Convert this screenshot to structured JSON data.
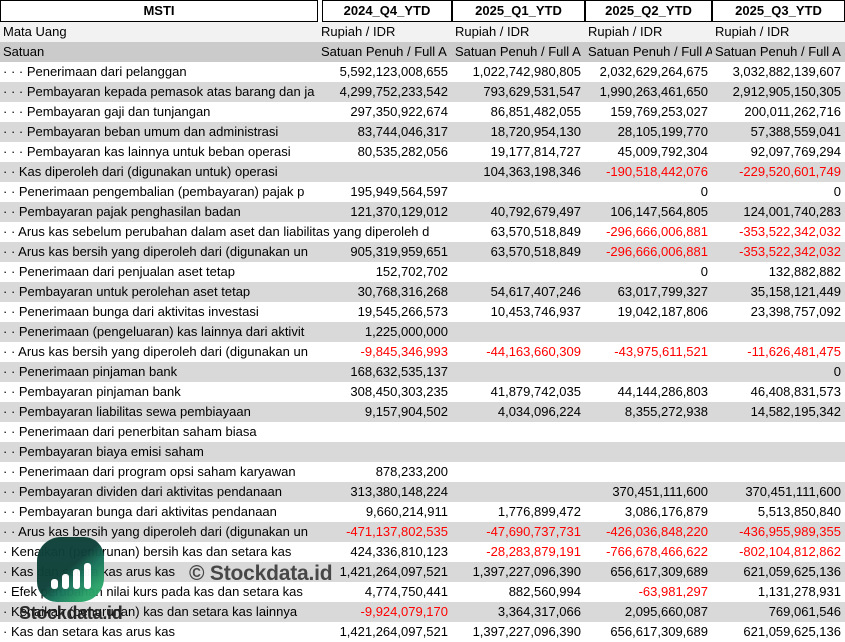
{
  "table": {
    "title": "MSTI",
    "periods": [
      "2024_Q4_YTD",
      "2025_Q1_YTD",
      "2025_Q2_YTD",
      "2025_Q3_YTD"
    ],
    "currency_row": {
      "label": "Mata Uang",
      "values": [
        "Rupiah / IDR",
        "Rupiah / IDR",
        "Rupiah / IDR",
        "Rupiah / IDR"
      ]
    },
    "unit_row": {
      "label": "Satuan",
      "values": [
        "Satuan Penuh / Full A",
        "Satuan Penuh / Full A",
        "Satuan Penuh / Full A",
        "Satuan Penuh / Full A"
      ]
    },
    "rows": [
      {
        "label": "· · · Penerimaan dari pelanggan",
        "values": [
          "5,592,123,008,655",
          "1,022,742,980,805",
          "2,032,629,264,675",
          "3,032,882,139,607"
        ]
      },
      {
        "label": "· · · Pembayaran kepada pemasok atas barang dan ja",
        "values": [
          "4,299,752,233,542",
          "793,629,531,547",
          "1,990,263,461,650",
          "2,912,905,150,305"
        ]
      },
      {
        "label": "· · · Pembayaran gaji dan tunjangan",
        "values": [
          "297,350,922,674",
          "86,851,482,055",
          "159,769,253,027",
          "200,011,262,716"
        ]
      },
      {
        "label": "· · · Pembayaran beban umum dan administrasi",
        "values": [
          "83,744,046,317",
          "18,720,954,130",
          "28,105,199,770",
          "57,388,559,041"
        ]
      },
      {
        "label": "· · · Pembayaran kas lainnya untuk beban operasi",
        "values": [
          "80,535,282,056",
          "19,177,814,727",
          "45,009,792,304",
          "92,097,769,294"
        ]
      },
      {
        "label": "· · Kas diperoleh dari (digunakan untuk) operasi",
        "values": [
          "",
          "104,363,198,346",
          "-190,518,442,076",
          "-229,520,601,749"
        ]
      },
      {
        "label": "· · Penerimaan pengembalian (pembayaran) pajak p",
        "values": [
          "195,949,564,597",
          "",
          "0",
          "0"
        ]
      },
      {
        "label": "· · Pembayaran pajak penghasilan badan",
        "values": [
          "121,370,129,012",
          "40,792,679,497",
          "106,147,564,805",
          "124,001,740,283"
        ]
      },
      {
        "label": "· · Arus kas sebelum perubahan dalam aset dan liabilitas yang diperoleh d",
        "values": [
          "",
          "63,570,518,849",
          "-296,666,006,881",
          "-353,522,342,032"
        ],
        "label_span": true
      },
      {
        "label": "· · Arus kas bersih yang diperoleh dari (digunakan un",
        "values": [
          "905,319,959,651",
          "63,570,518,849",
          "-296,666,006,881",
          "-353,522,342,032"
        ]
      },
      {
        "label": "· · Penerimaan dari penjualan aset tetap",
        "values": [
          "152,702,702",
          "",
          "0",
          "132,882,882"
        ]
      },
      {
        "label": "· · Pembayaran untuk perolehan aset tetap",
        "values": [
          "30,768,316,268",
          "54,617,407,246",
          "63,017,799,327",
          "35,158,121,449"
        ]
      },
      {
        "label": "· · Penerimaan bunga dari aktivitas investasi",
        "values": [
          "19,545,266,573",
          "10,453,746,937",
          "19,042,187,806",
          "23,398,757,092"
        ]
      },
      {
        "label": "· · Penerimaan (pengeluaran) kas lainnya dari aktivit",
        "values": [
          "1,225,000,000",
          "",
          "",
          ""
        ]
      },
      {
        "label": "· · Arus kas bersih yang diperoleh dari (digunakan un",
        "values": [
          "-9,845,346,993",
          "-44,163,660,309",
          "-43,975,611,521",
          "-11,626,481,475"
        ]
      },
      {
        "label": "· · Penerimaan pinjaman bank",
        "values": [
          "168,632,535,137",
          "",
          "",
          "0"
        ]
      },
      {
        "label": "· · Pembayaran pinjaman bank",
        "values": [
          "308,450,303,235",
          "41,879,742,035",
          "44,144,286,803",
          "46,408,831,573"
        ]
      },
      {
        "label": "· · Pembayaran liabilitas sewa pembiayaan",
        "values": [
          "9,157,904,502",
          "4,034,096,224",
          "8,355,272,938",
          "14,582,195,342"
        ]
      },
      {
        "label": "· · Penerimaan dari penerbitan saham biasa",
        "values": [
          "",
          "",
          "",
          ""
        ]
      },
      {
        "label": "· · Pembayaran biaya emisi saham",
        "values": [
          "",
          "",
          "",
          ""
        ]
      },
      {
        "label": "· · Penerimaan dari program opsi saham karyawan",
        "values": [
          "878,233,200",
          "",
          "",
          ""
        ]
      },
      {
        "label": "· · Pembayaran dividen dari aktivitas pendanaan",
        "values": [
          "313,380,148,224",
          "",
          "370,451,111,600",
          "370,451,111,600"
        ]
      },
      {
        "label": "· · Pembayaran bunga dari aktivitas pendanaan",
        "values": [
          "9,660,214,911",
          "1,776,899,472",
          "3,086,176,879",
          "5,513,850,840"
        ]
      },
      {
        "label": "· · Arus kas bersih yang diperoleh dari (digunakan un",
        "values": [
          "-471,137,802,535",
          "-47,690,737,731",
          "-426,036,848,220",
          "-436,955,989,355"
        ]
      },
      {
        "label": "· Kenaikan (penurunan) bersih kas dan setara kas",
        "values": [
          "424,336,810,123",
          "-28,283,879,191",
          "-766,678,466,622",
          "-802,104,812,862"
        ]
      },
      {
        "label": "· Kas dan setara kas arus kas",
        "values": [
          "1,421,264,097,521",
          "1,397,227,096,390",
          "656,617,309,689",
          "621,059,625,136"
        ]
      },
      {
        "label": "· Efek perubahan nilai kurs pada kas dan setara kas",
        "values": [
          "4,774,750,441",
          "882,560,994",
          "-63,981,297",
          "1,131,278,931"
        ]
      },
      {
        "label": "· Kenaikan (penurunan) kas dan setara kas lainnya",
        "values": [
          "-9,924,079,170",
          "3,364,317,066",
          "2,095,660,087",
          "769,061,546"
        ]
      },
      {
        "label": "· Kas dan setara kas arus kas",
        "values": [
          "1,421,264,097,521",
          "1,397,227,096,390",
          "656,617,309,689",
          "621,059,625,136"
        ]
      }
    ]
  },
  "colors": {
    "negative": "#FF0000",
    "band_gray": "#D9D9D9",
    "currency_row_bg": "#F2F2F2",
    "unit_row_bg": "#CBCBCB",
    "logo_teal": "#0E423A",
    "logo_green": "#2AA268"
  },
  "watermark": {
    "logo_icon": "bar-chart-icon",
    "logo_text": "Stockdata.id",
    "copyright_text": "© Stockdata.id"
  }
}
